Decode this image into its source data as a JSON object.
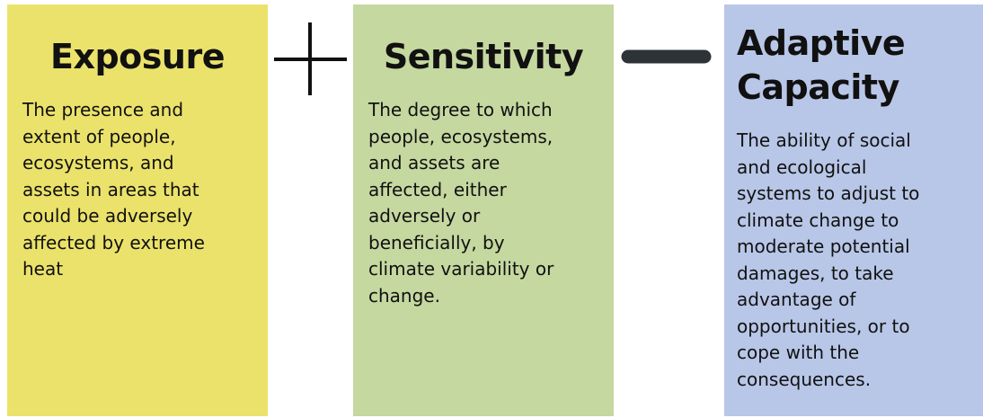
{
  "boxes": [
    {
      "title": [
        "Exposure"
      ],
      "description": [
        "The presence and",
        "extent of people,",
        "ecosystems, and",
        "assets in areas that",
        "could be adversely",
        "affected by extreme",
        "heat"
      ]
    },
    {
      "title": [
        "Sensitivity"
      ],
      "description": [
        "The degree to which",
        "people, ecosystems,",
        "and assets are",
        "affected, either",
        "adversely or",
        "beneficially, by",
        "climate variability or",
        "change."
      ]
    },
    {
      "title": [
        "Adaptive",
        "Capacity"
      ],
      "description": [
        "The ability of social",
        "and ecological",
        "systems to adjust to",
        "climate change to",
        "moderate potential",
        "damages, to take",
        "advantage of",
        "opportunities, or to",
        "cope with the",
        "consequences."
      ]
    }
  ]
}
